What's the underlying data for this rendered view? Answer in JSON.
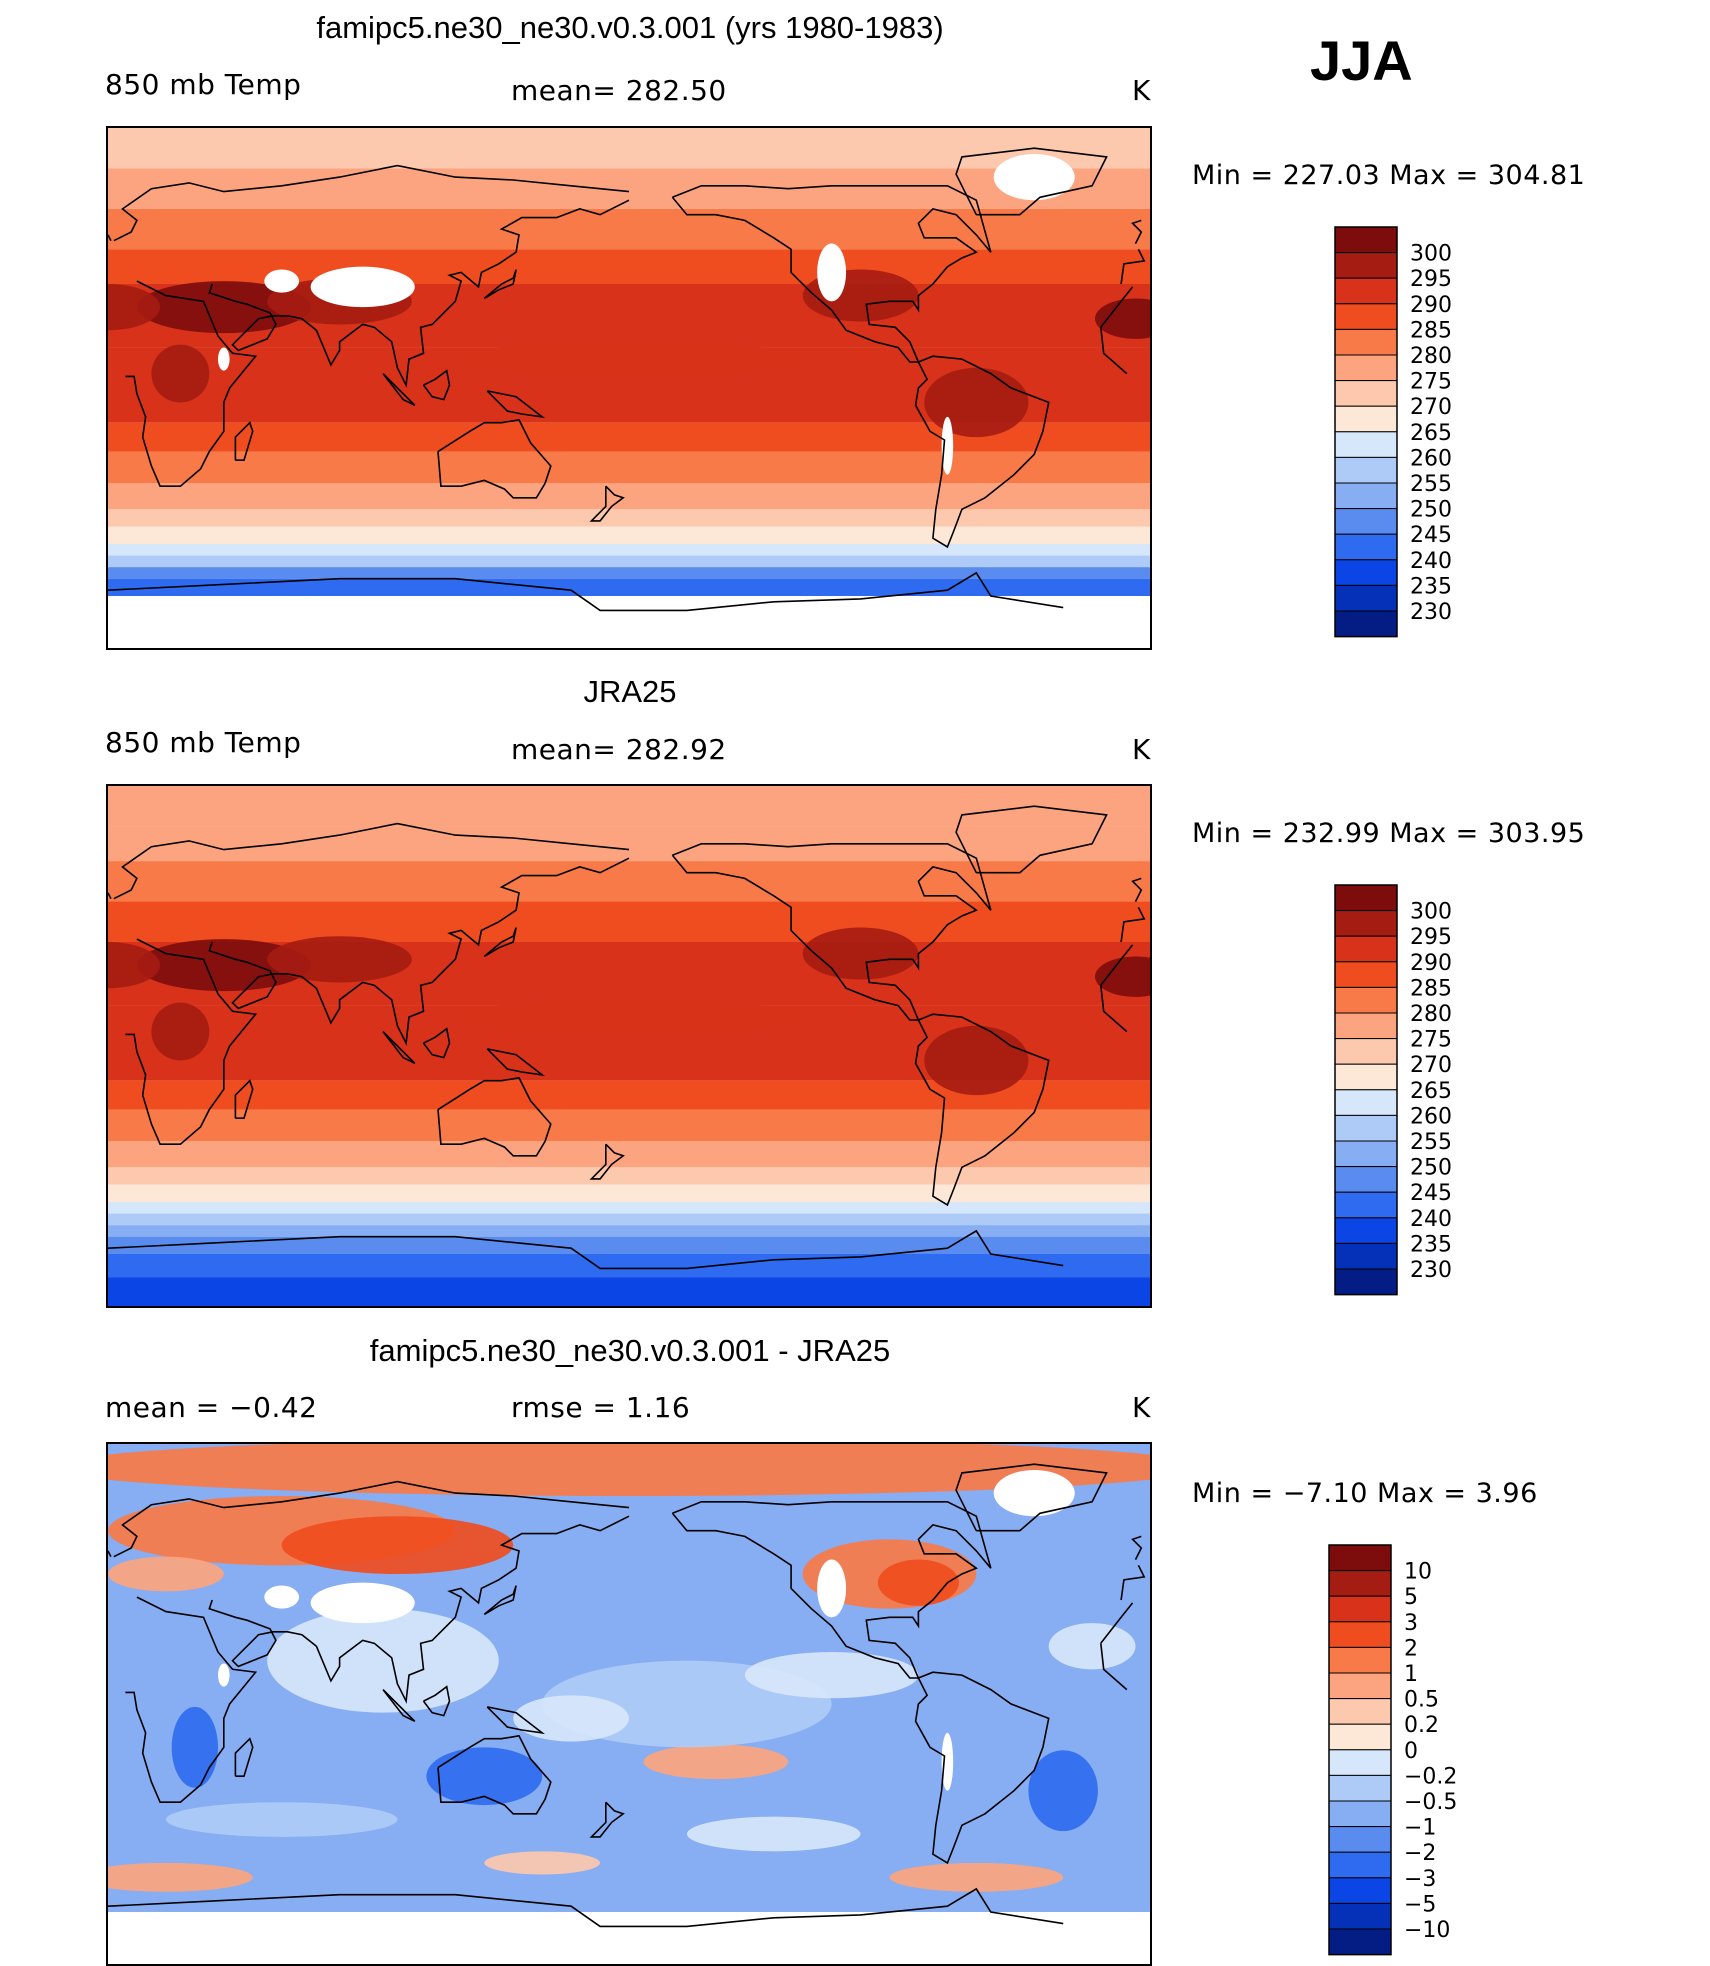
{
  "season": "JJA",
  "units": "K",
  "colors": {
    "warm": [
      "#fde8d7",
      "#fcc8ae",
      "#fca47f",
      "#f87a48",
      "#ef4d1f",
      "#d8321a",
      "#a51c12",
      "#7d0c0c"
    ],
    "cool": [
      "#d6e6fb",
      "#aecbf7",
      "#87adf2",
      "#5a8cf0",
      "#2f6bf0",
      "#0c45e6",
      "#0530b8",
      "#031d85"
    ],
    "land_line": "#000000",
    "missing": "#ffffff"
  },
  "icons": {
    "land": "coastline-outline",
    "missing": "missing-data-mask"
  },
  "chart_data": [
    {
      "type": "heatmap",
      "title": "famipc5.ne30_ne30.v0.3.001 (yrs 1980-1983)",
      "variable_label": "850 mb Temp",
      "stat_label": "mean= 282.50",
      "units": "K",
      "minmax_label": "Min = 227.03 Max = 304.81",
      "min": 227.03,
      "max": 304.81,
      "mean": 282.5,
      "colorbar_levels": [
        "300",
        "295",
        "290",
        "285",
        "280",
        "275",
        "270",
        "265",
        "260",
        "255",
        "250",
        "245",
        "240",
        "235",
        "230"
      ],
      "x": "longitude (0 to 360, Greenwich centered left)",
      "y": "latitude (-90 to 90)"
    },
    {
      "type": "heatmap",
      "title": "JRA25",
      "variable_label": "850 mb Temp",
      "stat_label": "mean= 282.92",
      "units": "K",
      "minmax_label": "Min = 232.99 Max = 303.95",
      "min": 232.99,
      "max": 303.95,
      "mean": 282.92,
      "colorbar_levels": [
        "300",
        "295",
        "290",
        "285",
        "280",
        "275",
        "270",
        "265",
        "260",
        "255",
        "250",
        "245",
        "240",
        "235",
        "230"
      ]
    },
    {
      "type": "heatmap",
      "title": "famipc5.ne30_ne30.v0.3.001 - JRA25",
      "variable_label": "mean =   −0.42",
      "stat_label": "rmse =    1.16",
      "units": "K",
      "minmax_label": "Min =  −7.10 Max =    3.96",
      "min": -7.1,
      "max": 3.96,
      "mean": -0.42,
      "rmse": 1.16,
      "colorbar_levels": [
        "10",
        "5",
        "3",
        "2",
        "1",
        "0.5",
        "0.2",
        "0",
        "−0.2",
        "−0.5",
        "−1",
        "−2",
        "−3",
        "−5",
        "−10"
      ]
    }
  ]
}
